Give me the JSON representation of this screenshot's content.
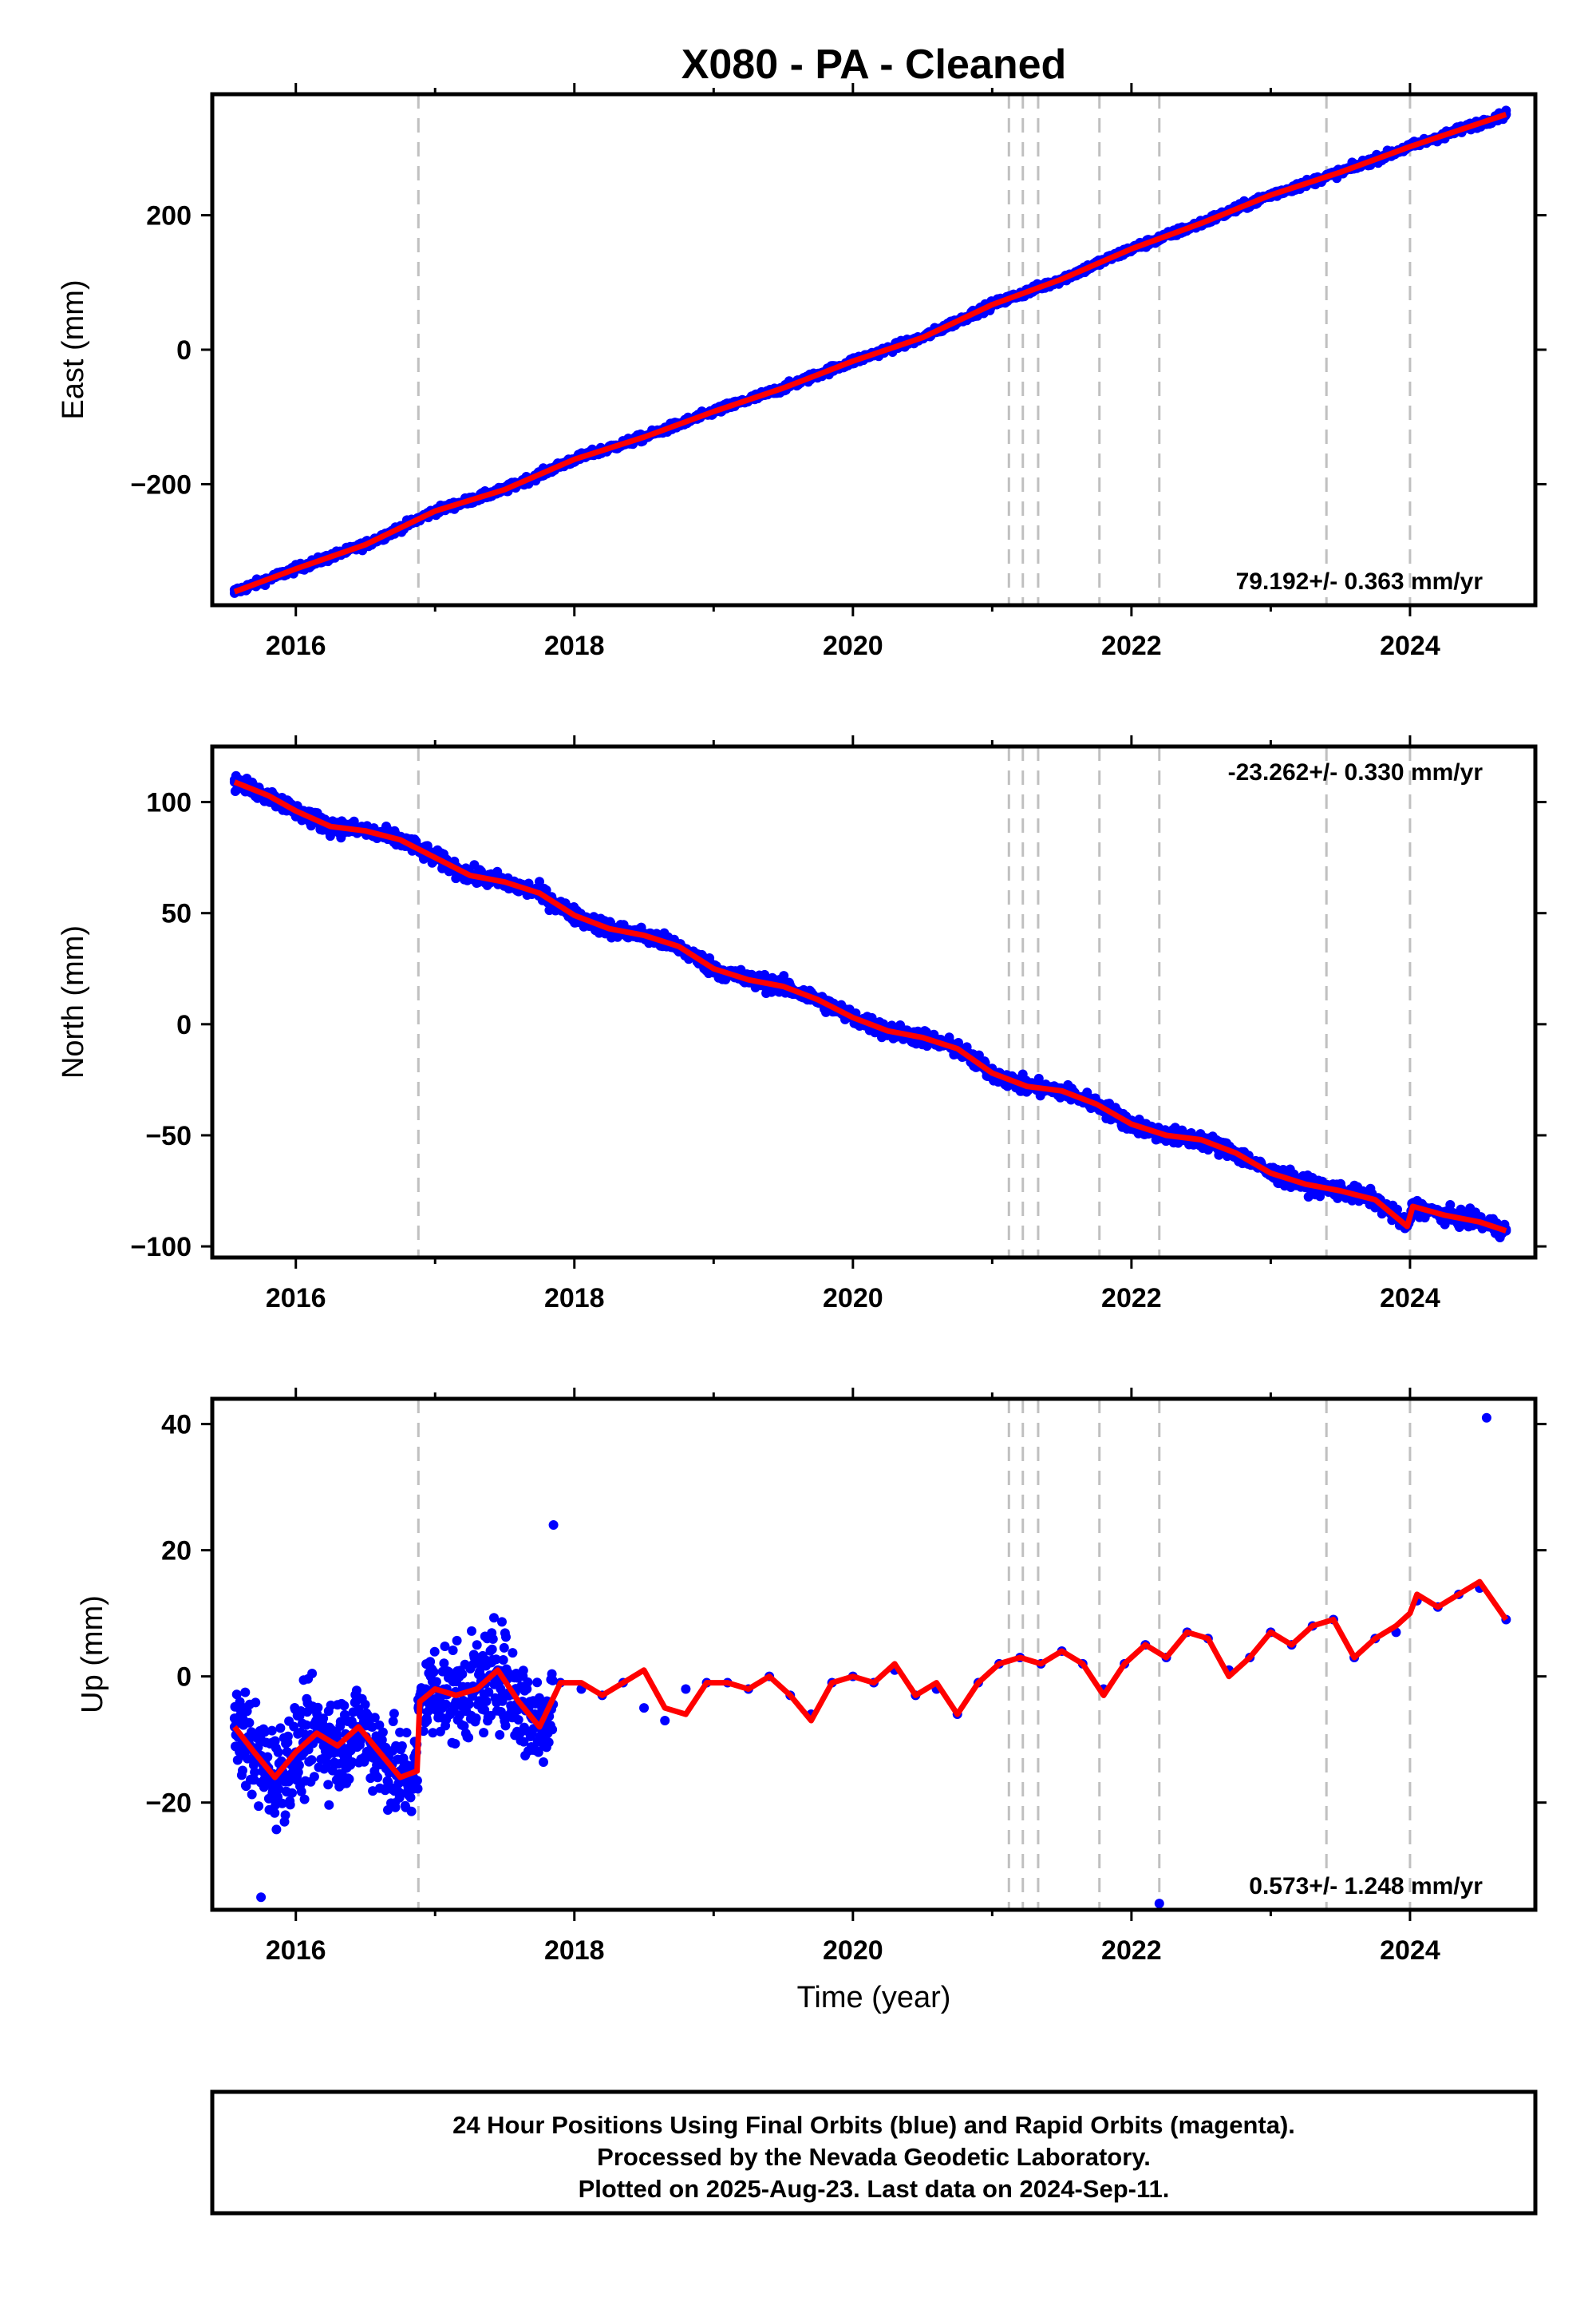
{
  "title": "X080  - PA - Cleaned",
  "colors": {
    "points": "#0000ff",
    "fit": "#ff0000",
    "breaks": "#c0c0c0",
    "frame": "#000000"
  },
  "chart_data": [
    {
      "type": "scatter",
      "panel": "east",
      "ylabel": "East (mm)",
      "xlabel": "",
      "xlim": [
        2015.4,
        2024.9
      ],
      "ylim": [
        -380,
        380
      ],
      "xticks": [
        2016,
        2018,
        2020,
        2022,
        2024
      ],
      "yticks": [
        -200,
        0,
        200
      ],
      "rate_label": "79.192+/- 0.363 mm/yr",
      "rate_position": "bottom-right",
      "break_lines": [
        2016.88,
        2021.12,
        2021.22,
        2021.33,
        2021.77,
        2022.2,
        2023.4,
        2024.0
      ],
      "series": [
        {
          "name": "daily positions",
          "kind": "points",
          "x": [
            2015.56,
            2015.8,
            2016.0,
            2016.25,
            2016.5,
            2016.75,
            2016.88,
            2017.0,
            2017.25,
            2017.5,
            2017.75,
            2018.0,
            2018.25,
            2018.5,
            2018.75,
            2019.0,
            2019.25,
            2019.5,
            2019.75,
            2020.0,
            2020.25,
            2020.5,
            2020.75,
            2021.0,
            2021.25,
            2021.5,
            2021.75,
            2022.0,
            2022.25,
            2022.5,
            2022.75,
            2023.0,
            2023.25,
            2023.5,
            2023.75,
            2024.0,
            2024.25,
            2024.5,
            2024.69
          ],
          "y": [
            -362,
            -342,
            -326,
            -306,
            -290,
            -268,
            -252,
            -240,
            -225,
            -208,
            -185,
            -163,
            -147,
            -130,
            -110,
            -92,
            -75,
            -57,
            -38,
            -17,
            0,
            18,
            40,
            67,
            88,
            105,
            126,
            150,
            170,
            188,
            210,
            230,
            246,
            264,
            285,
            302,
            314,
            332,
            350
          ]
        },
        {
          "name": "model fit",
          "kind": "line",
          "x": [
            2015.56,
            2016.0,
            2016.5,
            2017.0,
            2017.5,
            2018.0,
            2018.5,
            2019.0,
            2019.5,
            2020.0,
            2020.5,
            2021.0,
            2021.5,
            2022.0,
            2022.5,
            2023.0,
            2023.5,
            2024.0,
            2024.69
          ],
          "y": [
            -360,
            -326,
            -290,
            -240,
            -208,
            -163,
            -130,
            -92,
            -57,
            -17,
            18,
            67,
            105,
            150,
            188,
            230,
            264,
            302,
            350
          ]
        }
      ]
    },
    {
      "type": "scatter",
      "panel": "north",
      "ylabel": "North (mm)",
      "xlabel": "",
      "xlim": [
        2015.4,
        2024.9
      ],
      "ylim": [
        -105,
        125
      ],
      "xticks": [
        2016,
        2018,
        2020,
        2022,
        2024
      ],
      "yticks": [
        -100,
        -50,
        0,
        50,
        100
      ],
      "rate_label": "-23.262+/- 0.330 mm/yr",
      "rate_position": "top-right",
      "break_lines": [
        2016.88,
        2021.12,
        2021.22,
        2021.33,
        2021.77,
        2022.2,
        2023.4,
        2024.0
      ],
      "series": [
        {
          "name": "daily positions",
          "kind": "points",
          "x": [
            2015.56,
            2015.8,
            2016.0,
            2016.25,
            2016.5,
            2016.75,
            2017.0,
            2017.25,
            2017.5,
            2017.75,
            2018.0,
            2018.25,
            2018.5,
            2018.75,
            2019.0,
            2019.25,
            2019.5,
            2019.75,
            2020.0,
            2020.25,
            2020.5,
            2020.75,
            2021.0,
            2021.25,
            2021.5,
            2021.75,
            2022.0,
            2022.25,
            2022.5,
            2022.75,
            2023.0,
            2023.25,
            2023.5,
            2023.75,
            2023.98,
            2024.02,
            2024.25,
            2024.5,
            2024.69
          ],
          "y": [
            110,
            104,
            97,
            90,
            88,
            84,
            76,
            67,
            64,
            60,
            49,
            43,
            41,
            36,
            25,
            20,
            17,
            12,
            3,
            -3,
            -6,
            -10,
            -22,
            -28,
            -30,
            -36,
            -45,
            -50,
            -52,
            -58,
            -67,
            -72,
            -75,
            -79,
            -91,
            -82,
            -86,
            -89,
            -93
          ]
        },
        {
          "name": "model fit",
          "kind": "line",
          "x": [
            2015.56,
            2015.8,
            2016.0,
            2016.25,
            2016.5,
            2016.75,
            2017.0,
            2017.25,
            2017.5,
            2017.75,
            2018.0,
            2018.25,
            2018.5,
            2018.75,
            2019.0,
            2019.25,
            2019.5,
            2019.75,
            2020.0,
            2020.25,
            2020.5,
            2020.75,
            2021.0,
            2021.25,
            2021.5,
            2021.75,
            2022.0,
            2022.25,
            2022.5,
            2022.75,
            2023.0,
            2023.25,
            2023.5,
            2023.75,
            2023.98,
            2024.02,
            2024.25,
            2024.5,
            2024.69
          ],
          "y": [
            109,
            103,
            96,
            89,
            87,
            83,
            75,
            67,
            64,
            59,
            49,
            43,
            40,
            35,
            25,
            20,
            17,
            11,
            3,
            -3,
            -6,
            -11,
            -22,
            -28,
            -30,
            -36,
            -45,
            -50,
            -52,
            -58,
            -67,
            -72,
            -75,
            -79,
            -91,
            -82,
            -86,
            -89,
            -93
          ]
        }
      ]
    },
    {
      "type": "scatter",
      "panel": "up",
      "ylabel": "Up (mm)",
      "xlabel": "Time (year)",
      "xlim": [
        2015.4,
        2024.9
      ],
      "ylim": [
        -37,
        44
      ],
      "xticks": [
        2016,
        2018,
        2020,
        2022,
        2024
      ],
      "yticks": [
        -20,
        0,
        20,
        40
      ],
      "rate_label": "0.573+/- 1.248 mm/yr",
      "rate_position": "bottom-right",
      "break_lines": [
        2016.88,
        2021.12,
        2021.22,
        2021.33,
        2021.77,
        2022.2,
        2023.4,
        2024.0
      ],
      "series": [
        {
          "name": "daily positions",
          "kind": "points",
          "x": [
            2015.56,
            2015.7,
            2015.85,
            2016.0,
            2016.15,
            2016.3,
            2016.45,
            2016.6,
            2016.75,
            2016.88,
            2017.0,
            2017.15,
            2017.3,
            2017.45,
            2017.6,
            2017.75,
            2017.9,
            2018.05,
            2018.2,
            2018.35,
            2018.5,
            2018.65,
            2018.8,
            2018.95,
            2019.1,
            2019.25,
            2019.4,
            2019.55,
            2019.7,
            2019.85,
            2020.0,
            2020.15,
            2020.3,
            2020.45,
            2020.6,
            2020.75,
            2020.9,
            2021.05,
            2021.2,
            2021.35,
            2021.5,
            2021.65,
            2021.8,
            2021.95,
            2022.1,
            2022.25,
            2022.4,
            2022.55,
            2022.7,
            2022.85,
            2023.0,
            2023.15,
            2023.3,
            2023.45,
            2023.6,
            2023.75,
            2023.9,
            2024.05,
            2024.2,
            2024.35,
            2024.5,
            2024.69,
            2022.2,
            2015.75,
            2024.55,
            2017.85
          ],
          "y": [
            -8,
            -12,
            -18,
            -12,
            -9,
            -12,
            -8,
            -14,
            -15,
            -5,
            -2,
            -4,
            -2,
            1,
            -5,
            -8,
            -1,
            -2,
            -3,
            -1,
            -5,
            -7,
            -2,
            -1,
            -1,
            -2,
            0,
            -3,
            -6,
            -1,
            0,
            -1,
            1,
            -3,
            -2,
            -6,
            -1,
            2,
            3,
            2,
            4,
            2,
            -2,
            2,
            5,
            3,
            7,
            6,
            1,
            3,
            7,
            5,
            8,
            9,
            3,
            6,
            7,
            12,
            11,
            13,
            14,
            9,
            -36,
            -35,
            41,
            24
          ]
        },
        {
          "name": "model fit",
          "kind": "line",
          "x": [
            2015.56,
            2015.7,
            2015.85,
            2016.0,
            2016.15,
            2016.3,
            2016.45,
            2016.6,
            2016.75,
            2016.87,
            2016.89,
            2017.0,
            2017.15,
            2017.3,
            2017.45,
            2017.6,
            2017.75,
            2017.9,
            2018.05,
            2018.2,
            2018.35,
            2018.5,
            2018.65,
            2018.8,
            2018.95,
            2019.1,
            2019.25,
            2019.4,
            2019.55,
            2019.7,
            2019.85,
            2020.0,
            2020.15,
            2020.3,
            2020.45,
            2020.6,
            2020.75,
            2020.9,
            2021.05,
            2021.2,
            2021.35,
            2021.5,
            2021.65,
            2021.8,
            2021.95,
            2022.1,
            2022.25,
            2022.4,
            2022.55,
            2022.7,
            2022.85,
            2023.0,
            2023.15,
            2023.3,
            2023.45,
            2023.6,
            2023.75,
            2023.9,
            2024.0,
            2024.05,
            2024.2,
            2024.35,
            2024.5,
            2024.69
          ],
          "y": [
            -8,
            -12,
            -16,
            -12,
            -9,
            -11,
            -8,
            -12,
            -16,
            -15,
            -4,
            -2,
            -3,
            -2,
            1,
            -4,
            -8,
            -1,
            -1,
            -3,
            -1,
            1,
            -5,
            -6,
            -1,
            -1,
            -2,
            0,
            -3,
            -7,
            -1,
            0,
            -1,
            2,
            -3,
            -1,
            -6,
            -1,
            2,
            3,
            2,
            4,
            2,
            -3,
            2,
            5,
            3,
            7,
            6,
            0,
            3,
            7,
            5,
            8,
            9,
            3,
            6,
            8,
            10,
            13,
            11,
            13,
            15,
            9
          ]
        }
      ]
    }
  ],
  "footer": {
    "line1": "24 Hour Positions Using Final Orbits (blue) and Rapid Orbits (magenta).",
    "line2": "Processed by the Nevada Geodetic Laboratory.",
    "line3": "Plotted on 2025-Aug-23. Last data on 2024-Sep-11."
  }
}
